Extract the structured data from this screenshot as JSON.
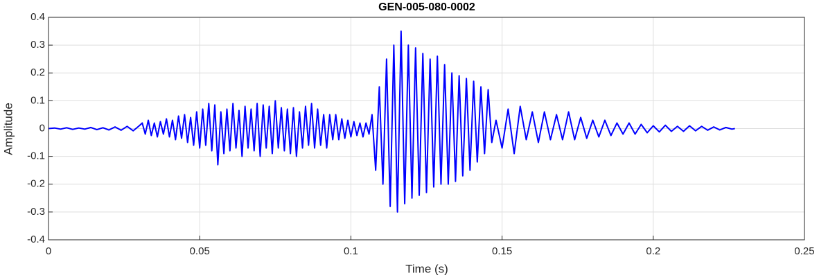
{
  "chart_data": {
    "type": "line",
    "title": "GEN-005-080-0002",
    "xlabel": "Time (s)",
    "ylabel": "Amplitude",
    "color": "#0000ff",
    "grid": true,
    "xlim": [
      0,
      0.25
    ],
    "xticks": [
      0,
      0.05,
      0.1,
      0.15,
      0.2,
      0.25
    ],
    "ylim": [
      -0.4,
      0.4
    ],
    "yticks": [
      -0.4,
      -0.3,
      -0.2,
      -0.1,
      0,
      0.1,
      0.2,
      0.3,
      0.4
    ],
    "x": [
      0,
      0.002,
      0.004,
      0.006,
      0.008,
      0.01,
      0.012,
      0.014,
      0.016,
      0.018,
      0.02,
      0.022,
      0.024,
      0.026,
      0.028,
      0.03,
      0.031,
      0.032,
      0.033,
      0.034,
      0.035,
      0.036,
      0.037,
      0.038,
      0.039,
      0.04,
      0.041,
      0.042,
      0.043,
      0.044,
      0.045,
      0.046,
      0.047,
      0.048,
      0.049,
      0.05,
      0.051,
      0.052,
      0.053,
      0.054,
      0.055,
      0.056,
      0.057,
      0.058,
      0.059,
      0.06,
      0.061,
      0.062,
      0.063,
      0.064,
      0.065,
      0.066,
      0.067,
      0.068,
      0.069,
      0.07,
      0.071,
      0.072,
      0.073,
      0.074,
      0.075,
      0.076,
      0.077,
      0.078,
      0.079,
      0.08,
      0.081,
      0.082,
      0.083,
      0.084,
      0.085,
      0.086,
      0.087,
      0.088,
      0.089,
      0.09,
      0.091,
      0.092,
      0.093,
      0.094,
      0.095,
      0.096,
      0.097,
      0.098,
      0.099,
      0.1,
      0.101,
      0.102,
      0.103,
      0.104,
      0.105,
      0.106,
      0.107,
      0.1082,
      0.1094,
      0.1106,
      0.1118,
      0.113,
      0.1142,
      0.1154,
      0.1166,
      0.1178,
      0.119,
      0.1202,
      0.1214,
      0.1226,
      0.1238,
      0.125,
      0.1262,
      0.1274,
      0.1286,
      0.1298,
      0.131,
      0.1322,
      0.1334,
      0.1346,
      0.1358,
      0.137,
      0.1382,
      0.1394,
      0.1406,
      0.1418,
      0.143,
      0.1442,
      0.1454,
      0.1466,
      0.148,
      0.15,
      0.152,
      0.154,
      0.156,
      0.158,
      0.16,
      0.162,
      0.164,
      0.166,
      0.168,
      0.17,
      0.172,
      0.174,
      0.176,
      0.178,
      0.18,
      0.182,
      0.184,
      0.186,
      0.188,
      0.19,
      0.192,
      0.194,
      0.196,
      0.198,
      0.2,
      0.202,
      0.204,
      0.206,
      0.208,
      0.21,
      0.212,
      0.214,
      0.216,
      0.218,
      0.22,
      0.222,
      0.224,
      0.226,
      0.227
    ],
    "values": [
      0,
      0.002,
      -0.002,
      0.003,
      -0.003,
      0.002,
      -0.002,
      0.004,
      -0.004,
      0.003,
      -0.005,
      0.006,
      -0.006,
      0.008,
      -0.008,
      0.01,
      0.02,
      -0.02,
      0.03,
      -0.025,
      0.02,
      -0.03,
      0.025,
      -0.02,
      0.035,
      -0.03,
      0.03,
      -0.04,
      0.045,
      -0.035,
      0.05,
      -0.05,
      0.04,
      -0.06,
      0.06,
      -0.07,
      0.07,
      -0.06,
      0.09,
      -0.08,
      0.085,
      -0.13,
      0.06,
      -0.09,
      0.07,
      -0.08,
      0.09,
      -0.07,
      0.065,
      -0.1,
      0.08,
      -0.07,
      0.07,
      -0.08,
      0.09,
      -0.1,
      0.085,
      -0.07,
      0.08,
      -0.09,
      0.1,
      -0.07,
      0.075,
      -0.08,
      0.07,
      -0.09,
      0.075,
      -0.1,
      0.06,
      -0.07,
      0.08,
      -0.06,
      0.09,
      -0.07,
      0.07,
      -0.06,
      0.05,
      -0.07,
      0.05,
      -0.04,
      0.05,
      -0.04,
      0.035,
      -0.035,
      0.03,
      -0.03,
      0.025,
      -0.025,
      0.02,
      -0.03,
      0.02,
      -0.02,
      0.05,
      -0.15,
      0.15,
      -0.2,
      0.25,
      -0.28,
      0.3,
      -0.3,
      0.35,
      -0.27,
      0.3,
      -0.25,
      0.29,
      -0.24,
      0.27,
      -0.23,
      0.25,
      -0.21,
      0.26,
      -0.2,
      0.23,
      -0.2,
      0.2,
      -0.19,
      0.19,
      -0.17,
      0.18,
      -0.15,
      0.17,
      -0.12,
      0.15,
      -0.09,
      0.14,
      -0.05,
      0.03,
      -0.07,
      0.07,
      -0.09,
      0.08,
      -0.04,
      0.06,
      -0.05,
      0.06,
      -0.04,
      0.05,
      -0.04,
      0.06,
      -0.04,
      0.04,
      -0.035,
      0.03,
      -0.03,
      0.03,
      -0.025,
      0.02,
      -0.02,
      0.02,
      -0.02,
      0.015,
      -0.015,
      0.01,
      -0.012,
      0.012,
      -0.01,
      0.008,
      -0.01,
      0.01,
      -0.008,
      0.008,
      -0.006,
      0.006,
      -0.005,
      0.004,
      -0.002,
      0
    ]
  }
}
